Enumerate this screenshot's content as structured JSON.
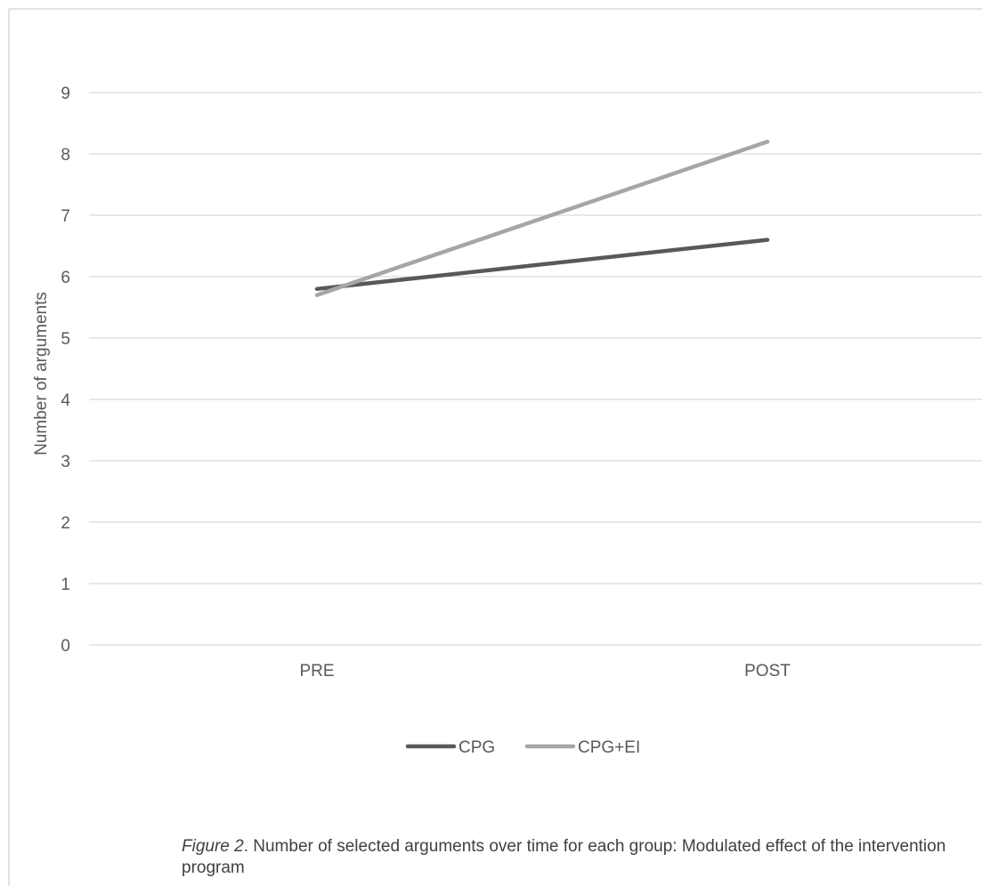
{
  "chart_data": {
    "type": "line",
    "categories": [
      "PRE",
      "POST"
    ],
    "series": [
      {
        "name": "CPG",
        "values": [
          5.8,
          6.6
        ],
        "color": "#595959"
      },
      {
        "name": "CPG+EI",
        "values": [
          5.7,
          8.2
        ],
        "color": "#a6a6a6"
      }
    ],
    "title": "",
    "xlabel": "",
    "ylabel": "Number of arguments",
    "ylim": [
      0,
      9
    ],
    "yticks": [
      "0",
      "1",
      "2",
      "3",
      "4",
      "5",
      "6",
      "7",
      "8",
      "9"
    ],
    "grid": true,
    "legend": "bottom"
  },
  "caption": {
    "label": "Figure 2",
    "text": ". Number of selected arguments over time for each group: Modulated effect of the intervention program"
  },
  "colors": {
    "gridline": "#d9d9d9",
    "frame": "#d9d9d9",
    "text": "#595959"
  }
}
